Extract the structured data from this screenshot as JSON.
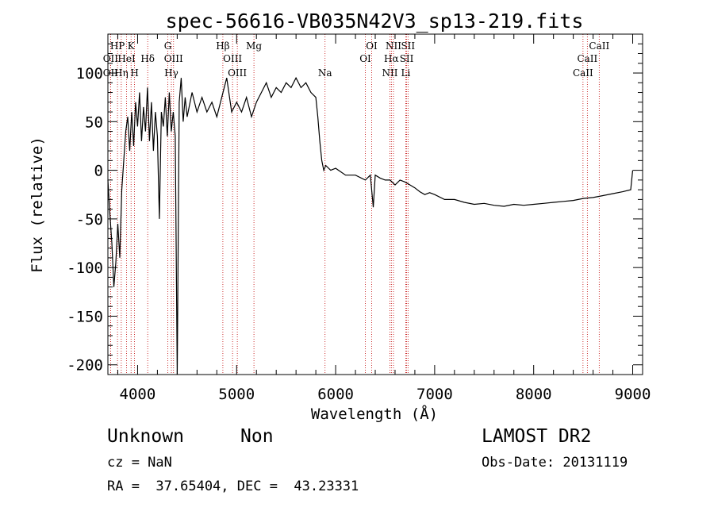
{
  "chart_data": {
    "type": "line",
    "title": "spec-56616-VB035N42V3_sp13-219.fits",
    "xlabel": "Wavelength (Å)",
    "ylabel": "Flux (relative)",
    "xlim": [
      3700,
      9100
    ],
    "ylim": [
      -210,
      140
    ],
    "xticks": [
      4000,
      5000,
      6000,
      7000,
      8000,
      9000
    ],
    "yticks": [
      -200,
      -150,
      -100,
      -50,
      0,
      50,
      100
    ],
    "grid": false,
    "series": [
      {
        "x": [
          3700,
          3720,
          3740,
          3760,
          3780,
          3800,
          3820,
          3840,
          3860,
          3880,
          3900,
          3920,
          3940,
          3960,
          3980,
          4000,
          4020,
          4040,
          4060,
          4080,
          4100,
          4120,
          4140,
          4160,
          4180,
          4200,
          4220,
          4240,
          4260,
          4280,
          4300,
          4320,
          4340,
          4360,
          4380,
          4400,
          4420,
          4440,
          4460,
          4480,
          4500,
          4550,
          4600,
          4650,
          4700,
          4750,
          4800,
          4850,
          4900,
          4950,
          5000,
          5050,
          5100,
          5150,
          5200,
          5250,
          5300,
          5350,
          5400,
          5450,
          5500,
          5550,
          5600,
          5650,
          5700,
          5750,
          5800,
          5820,
          5840,
          5860,
          5880,
          5900,
          5950,
          6000,
          6100,
          6200,
          6300,
          6350,
          6380,
          6400,
          6450,
          6500,
          6550,
          6600,
          6650,
          6700,
          6750,
          6800,
          6850,
          6900,
          6950,
          7000,
          7100,
          7200,
          7300,
          7400,
          7500,
          7600,
          7700,
          7800,
          7900,
          8000,
          8100,
          8200,
          8300,
          8400,
          8500,
          8600,
          8700,
          8800,
          8900,
          8980,
          9000
        ],
        "y": [
          -10,
          -45,
          -75,
          -120,
          -95,
          -55,
          -90,
          -20,
          10,
          40,
          55,
          20,
          60,
          25,
          70,
          45,
          80,
          30,
          65,
          40,
          85,
          30,
          70,
          20,
          60,
          35,
          -50,
          60,
          45,
          75,
          35,
          80,
          40,
          60,
          35,
          -210,
          70,
          95,
          50,
          75,
          55,
          80,
          60,
          75,
          60,
          70,
          55,
          75,
          95,
          60,
          70,
          60,
          75,
          55,
          70,
          80,
          90,
          75,
          85,
          80,
          90,
          85,
          95,
          85,
          90,
          80,
          75,
          55,
          30,
          10,
          0,
          5,
          0,
          2,
          -5,
          -5,
          -10,
          -5,
          -38,
          -5,
          -8,
          -10,
          -10,
          -15,
          -10,
          -12,
          -15,
          -18,
          -22,
          -25,
          -23,
          -25,
          -30,
          -30,
          -33,
          -35,
          -34,
          -36,
          -37,
          -35,
          -36,
          -35,
          -34,
          -33,
          -32,
          -31,
          -29,
          -28,
          -26,
          -24,
          -22,
          -20,
          0
        ]
      }
    ],
    "line_markers": [
      {
        "label": "HP",
        "x": 3797,
        "row": 1
      },
      {
        "label": "K",
        "x": 3934,
        "row": 1
      },
      {
        "label": "G",
        "x": 4305,
        "row": 1
      },
      {
        "label": "Hβ",
        "x": 4861,
        "row": 1
      },
      {
        "label": "Mg",
        "x": 5175,
        "row": 1
      },
      {
        "label": "OI",
        "x": 6364,
        "row": 1
      },
      {
        "label": "NII",
        "x": 6584,
        "row": 1
      },
      {
        "label": "SII",
        "x": 6731,
        "row": 1
      },
      {
        "label": "CaII",
        "x": 8662,
        "row": 1
      },
      {
        "label": "OII",
        "x": 3727,
        "row": 2
      },
      {
        "label": "HeI",
        "x": 3889,
        "row": 2
      },
      {
        "label": "Hδ",
        "x": 4102,
        "row": 2
      },
      {
        "label": "OIII",
        "x": 4363,
        "row": 2
      },
      {
        "label": "OIII",
        "x": 4959,
        "row": 2
      },
      {
        "label": "OI",
        "x": 6300,
        "row": 2
      },
      {
        "label": "Hα",
        "x": 6563,
        "row": 2
      },
      {
        "label": "SII",
        "x": 6717,
        "row": 2
      },
      {
        "label": "CaII",
        "x": 8542,
        "row": 2
      },
      {
        "label": "OII",
        "x": 3727,
        "row": 3
      },
      {
        "label": "Hη",
        "x": 3835,
        "row": 3
      },
      {
        "label": "H",
        "x": 3969,
        "row": 3
      },
      {
        "label": "Hγ",
        "x": 4341,
        "row": 3
      },
      {
        "label": "OIII",
        "x": 5007,
        "row": 3
      },
      {
        "label": "Na",
        "x": 5893,
        "row": 3
      },
      {
        "label": "NII",
        "x": 6548,
        "row": 3
      },
      {
        "label": "Li",
        "x": 6708,
        "row": 3
      },
      {
        "label": "CaII",
        "x": 8498,
        "row": 3
      }
    ],
    "marker_color": "#c00000",
    "line_color": "#000000"
  },
  "footer": {
    "object_class": "Unknown",
    "subclass": "Non",
    "survey": "LAMOST DR2",
    "redshift": "cz = NaN",
    "obs_date": "Obs-Date: 20131119",
    "coords": "RA =  37.65404, DEC =  43.23331"
  }
}
